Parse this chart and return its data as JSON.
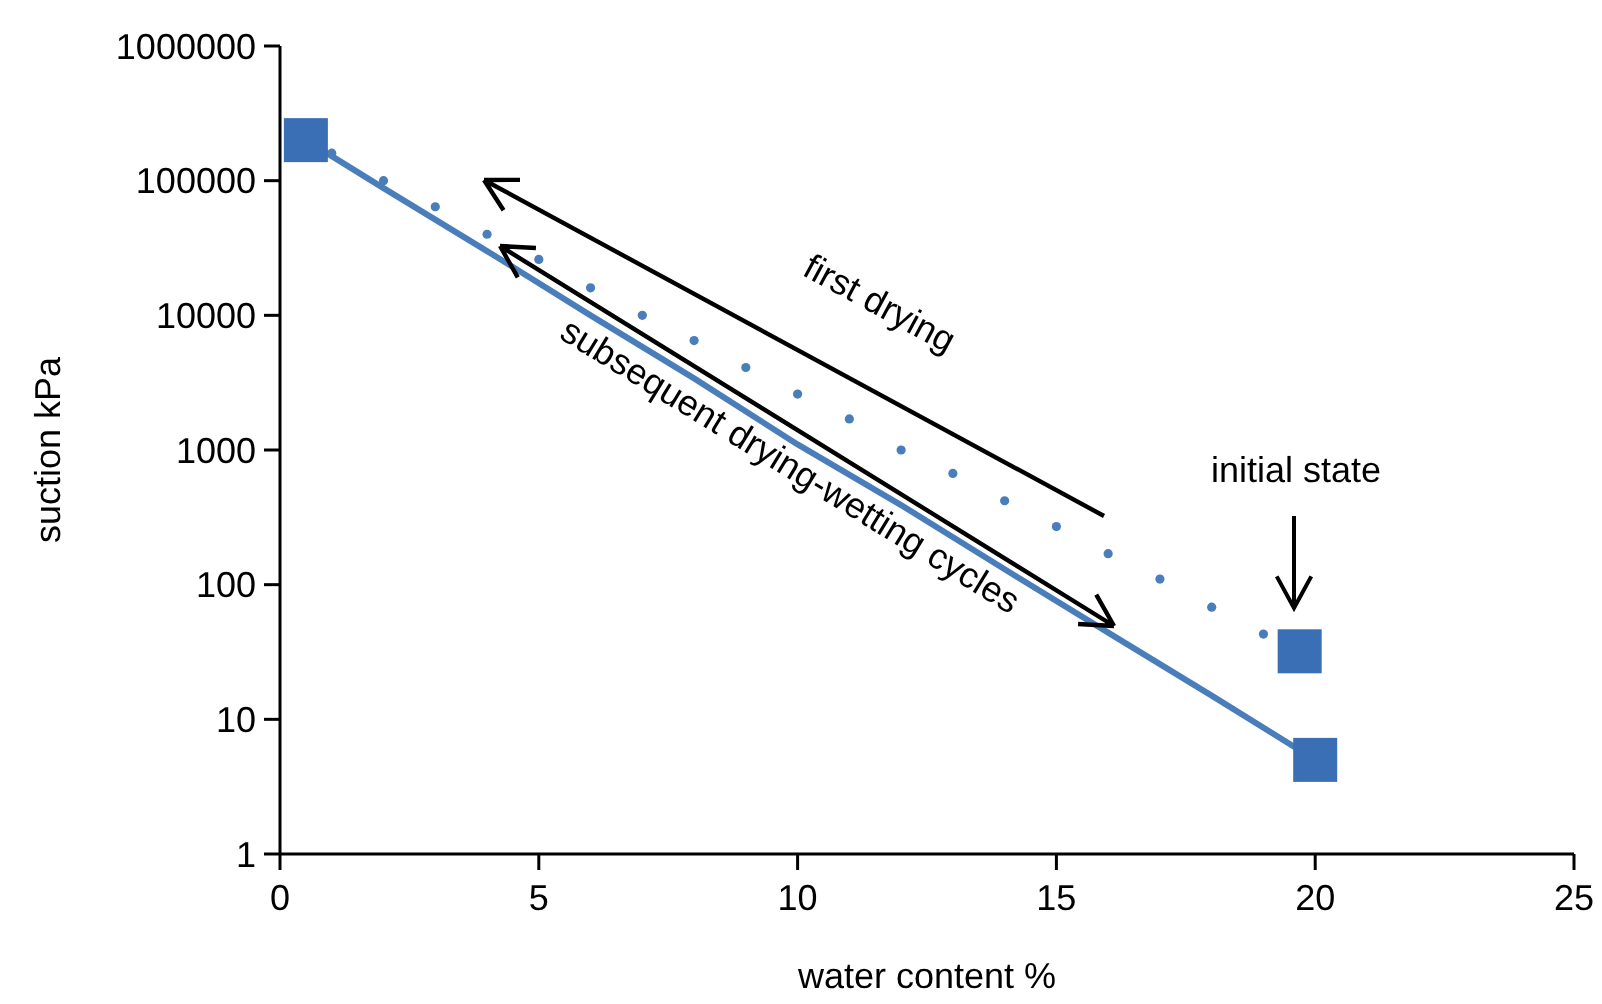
{
  "chart_data": {
    "type": "scatter",
    "xlabel": "water content %",
    "ylabel": "suction kPa",
    "xlim": [
      0,
      25
    ],
    "xticks": [
      0,
      5,
      10,
      15,
      20,
      25
    ],
    "ylim": [
      1,
      1000000
    ],
    "yticks": [
      1,
      10,
      100,
      1000,
      10000,
      100000,
      1000000
    ],
    "log": "y",
    "grid": false,
    "annotations": [
      "first drying",
      "subsequent drying-wetting cycles",
      "initial state"
    ],
    "series": [
      {
        "marker": "circle",
        "color": "#4a7ebb",
        "x": [
          1,
          2,
          3,
          4,
          5,
          6,
          7,
          8,
          9,
          10,
          11,
          12,
          13,
          14,
          15,
          16,
          17,
          18,
          19
        ],
        "values": [
          160000,
          100000,
          64000,
          40000,
          26000,
          16000,
          10000,
          6500,
          4100,
          2600,
          1700,
          1000,
          670,
          420,
          270,
          170,
          110,
          68,
          43
        ]
      },
      {
        "type": "line",
        "line_style": "solid",
        "color": "#4a7ebb",
        "x": [
          0.5,
          2,
          4,
          6,
          8,
          10,
          12,
          14,
          16,
          18,
          20
        ],
        "values": [
          200000,
          88000,
          30000,
          10000,
          3400,
          1100,
          390,
          130,
          44,
          15,
          5
        ]
      },
      {
        "marker": "square",
        "color": "#3a6fb5",
        "x": [
          0.5,
          19.7,
          20
        ],
        "values": [
          200000,
          32,
          5
        ]
      }
    ]
  }
}
